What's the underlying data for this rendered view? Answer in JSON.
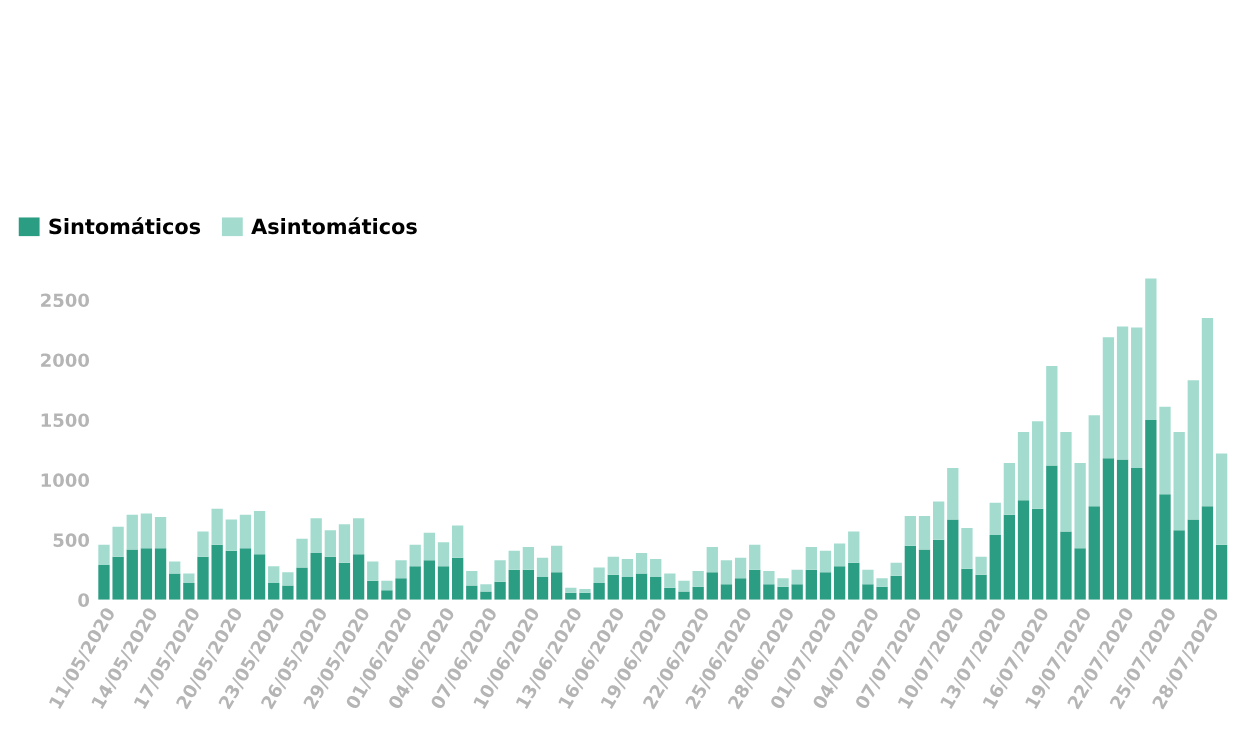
{
  "chart_data": {
    "type": "bar",
    "stacked": true,
    "categories": [
      "11/05/2020",
      null,
      null,
      "14/05/2020",
      null,
      null,
      "17/05/2020",
      null,
      null,
      "20/05/2020",
      null,
      null,
      "23/05/2020",
      null,
      null,
      "26/05/2020",
      null,
      null,
      "29/05/2020",
      null,
      null,
      "01/06/2020",
      null,
      null,
      "04/06/2020",
      null,
      null,
      "07/06/2020",
      null,
      null,
      "10/06/2020",
      null,
      null,
      "13/06/2020",
      null,
      null,
      "16/06/2020",
      null,
      null,
      "19/06/2020",
      null,
      null,
      "22/06/2020",
      null,
      null,
      "25/06/2020",
      null,
      null,
      "28/06/2020",
      null,
      null,
      "01/07/2020",
      null,
      null,
      "04/07/2020",
      null,
      null,
      "07/07/2020",
      null,
      null,
      "10/07/2020",
      null,
      null,
      "13/07/2020",
      null,
      null,
      "16/07/2020",
      null,
      null,
      "19/07/2020",
      null,
      null,
      "22/07/2020",
      null,
      null,
      "25/07/2020",
      null,
      null,
      "28/07/2020",
      null
    ],
    "series": [
      {
        "name": "Sintomáticos",
        "color": "#2a9d82",
        "values": [
          290,
          360,
          420,
          430,
          430,
          220,
          140,
          360,
          460,
          410,
          430,
          380,
          140,
          120,
          270,
          390,
          360,
          310,
          380,
          160,
          80,
          180,
          280,
          330,
          280,
          350,
          120,
          70,
          150,
          250,
          250,
          190,
          230,
          60,
          60,
          140,
          210,
          190,
          220,
          190,
          100,
          70,
          110,
          230,
          130,
          180,
          250,
          130,
          110,
          130,
          250,
          230,
          280,
          310,
          130,
          110,
          200,
          450,
          420,
          500,
          670,
          260,
          210,
          540,
          710,
          830,
          760,
          1120,
          570,
          430,
          780,
          1180,
          1170,
          1100,
          1500,
          880,
          580,
          670,
          780,
          460
        ]
      },
      {
        "name": "Asintomáticos",
        "color": "#a3dccf",
        "values": [
          170,
          250,
          290,
          290,
          260,
          100,
          80,
          210,
          300,
          260,
          280,
          360,
          140,
          110,
          240,
          290,
          220,
          320,
          300,
          160,
          80,
          150,
          180,
          230,
          200,
          270,
          120,
          60,
          180,
          160,
          190,
          160,
          220,
          40,
          30,
          130,
          150,
          150,
          170,
          150,
          120,
          90,
          130,
          210,
          200,
          170,
          210,
          110,
          70,
          120,
          190,
          180,
          190,
          260,
          120,
          70,
          110,
          250,
          280,
          320,
          430,
          340,
          150,
          270,
          430,
          570,
          730,
          830,
          830,
          710,
          760,
          1010,
          1110,
          1170,
          1180,
          730,
          820,
          1160,
          1570,
          760
        ]
      }
    ],
    "ylim": [
      0,
      2700
    ],
    "yticks": [
      0,
      500,
      1000,
      1500,
      2000,
      2500
    ],
    "legend": "top left"
  }
}
